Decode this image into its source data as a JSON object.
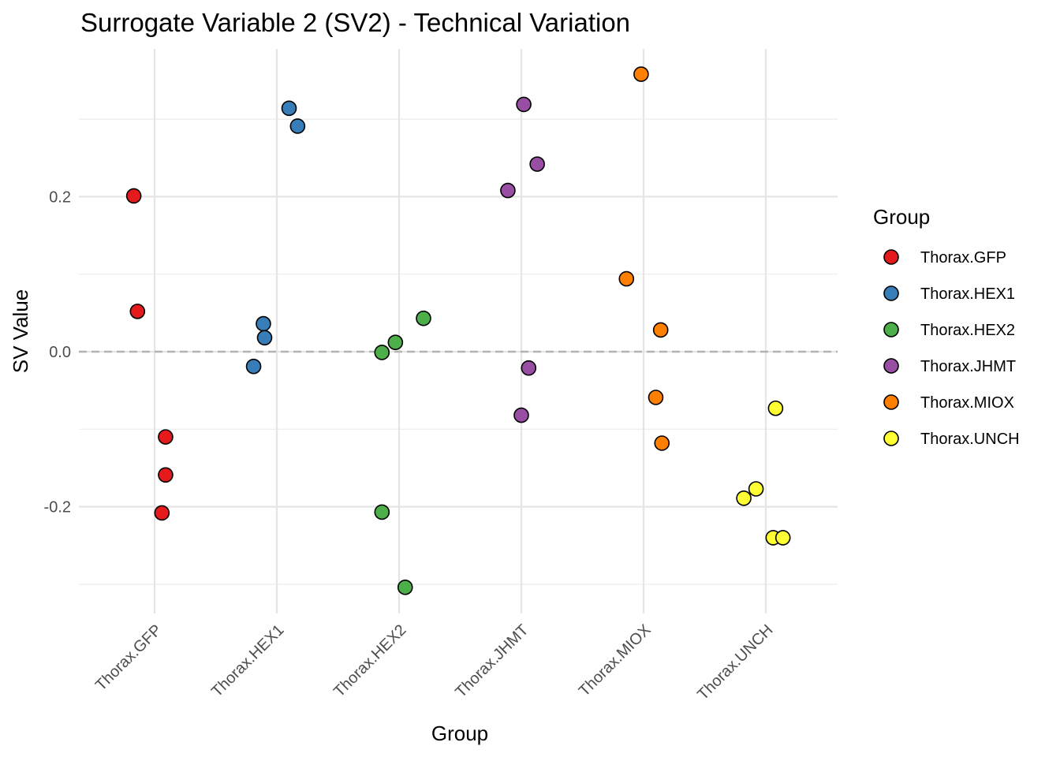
{
  "chart_data": {
    "type": "scatter",
    "title": "Surrogate Variable 2 (SV2) - Technical Variation",
    "xlabel": "Group",
    "ylabel": "SV Value",
    "categories": [
      "Thorax.GFP",
      "Thorax.HEX1",
      "Thorax.HEX2",
      "Thorax.JHMT",
      "Thorax.MIOX",
      "Thorax.UNCH"
    ],
    "ylim": [
      -0.33,
      0.39
    ],
    "yticks": [
      -0.2,
      0.0,
      0.2
    ],
    "ytick_labels": [
      "-0.2",
      "0.0",
      "0.2"
    ],
    "grid": true,
    "reference_line": {
      "y": 0.0,
      "style": "dashed",
      "color": "#b3b3b3"
    },
    "legend": {
      "title": "Group",
      "position": "right"
    },
    "series": [
      {
        "name": "Thorax.GFP",
        "color": "#e41a1c",
        "points": [
          {
            "x": -0.17,
            "y": 0.201
          },
          {
            "x": -0.14,
            "y": 0.052
          },
          {
            "x": 0.09,
            "y": -0.11
          },
          {
            "x": 0.09,
            "y": -0.159
          },
          {
            "x": 0.06,
            "y": -0.208
          }
        ]
      },
      {
        "name": "Thorax.HEX1",
        "color": "#377eb8",
        "points": [
          {
            "x": 0.1,
            "y": 0.314
          },
          {
            "x": 0.17,
            "y": 0.291
          },
          {
            "x": -0.11,
            "y": 0.036
          },
          {
            "x": -0.1,
            "y": 0.018
          },
          {
            "x": -0.19,
            "y": -0.019
          }
        ]
      },
      {
        "name": "Thorax.HEX2",
        "color": "#4daf4a",
        "points": [
          {
            "x": 1.2,
            "y": 0.043
          },
          {
            "x": 0.97,
            "y": 0.012
          },
          {
            "x": 0.86,
            "y": -0.001
          },
          {
            "x": 0.86,
            "y": -0.207
          },
          {
            "x": 1.05,
            "y": -0.304
          }
        ]
      },
      {
        "name": "Thorax.JHMT",
        "color": "#984ea3",
        "points": [
          {
            "x": 2.02,
            "y": 0.319
          },
          {
            "x": 2.13,
            "y": 0.242
          },
          {
            "x": 1.89,
            "y": 0.208
          },
          {
            "x": 2.06,
            "y": -0.021
          },
          {
            "x": 2.0,
            "y": -0.082
          }
        ]
      },
      {
        "name": "Thorax.MIOX",
        "color": "#ff7f00",
        "points": [
          {
            "x": 2.98,
            "y": 0.358
          },
          {
            "x": 2.86,
            "y": 0.094
          },
          {
            "x": 3.14,
            "y": 0.028
          },
          {
            "x": 3.1,
            "y": -0.059
          },
          {
            "x": 3.15,
            "y": -0.118
          }
        ]
      },
      {
        "name": "Thorax.UNCH",
        "color": "#ffff33",
        "points": [
          {
            "x": 3.08,
            "y": -0.073
          },
          {
            "x": 2.92,
            "y": -0.177
          },
          {
            "x": 2.82,
            "y": -0.189
          },
          {
            "x": 3.06,
            "y": -0.24
          },
          {
            "x": 3.14,
            "y": -0.24
          }
        ]
      }
    ]
  }
}
